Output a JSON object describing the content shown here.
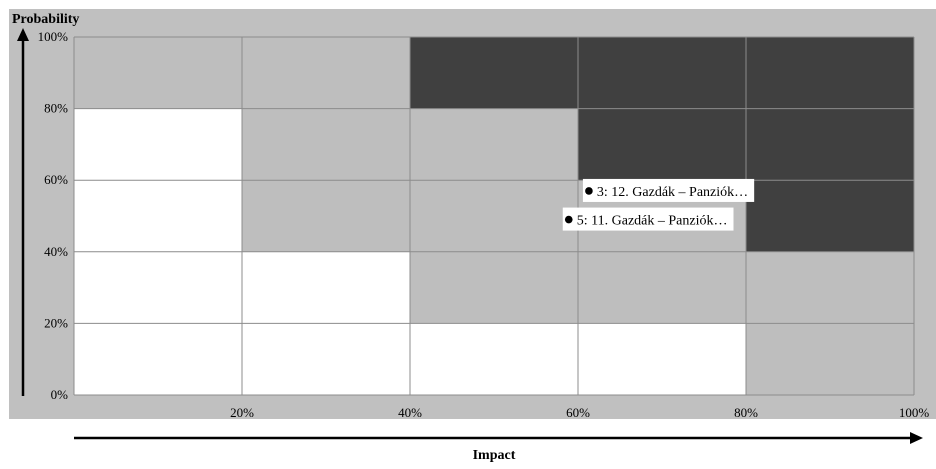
{
  "chart_data": {
    "type": "scatter",
    "title": "",
    "xlabel": "Impact",
    "ylabel": "Probability",
    "xlim": [
      0,
      100
    ],
    "ylim": [
      0,
      100
    ],
    "x_ticks": [
      "20%",
      "40%",
      "60%",
      "80%",
      "100%"
    ],
    "y_ticks": [
      "0%",
      "20%",
      "40%",
      "60%",
      "80%",
      "100%"
    ],
    "grid": true,
    "colors": {
      "panel": "#c0c0c0",
      "low": "#ffffff",
      "medium": "#bebebe",
      "high": "#404040",
      "gridline": "#8c8c8c",
      "point": "#000000"
    },
    "heat_grid": {
      "cols": 5,
      "rows": 5,
      "levels_bottom_to_top": [
        [
          "low",
          "low",
          "low",
          "low",
          "medium"
        ],
        [
          "low",
          "low",
          "medium",
          "medium",
          "medium"
        ],
        [
          "low",
          "medium",
          "medium",
          "medium",
          "high"
        ],
        [
          "low",
          "medium",
          "medium",
          "high",
          "high"
        ],
        [
          "medium",
          "medium",
          "high",
          "high",
          "high"
        ]
      ]
    },
    "points": [
      {
        "label": "3: 12. Gazdák – Panziók…",
        "x": 61.3,
        "y": 57.0
      },
      {
        "label": "5: 11. Gazdák – Panziók…",
        "x": 58.9,
        "y": 49.0
      }
    ]
  }
}
